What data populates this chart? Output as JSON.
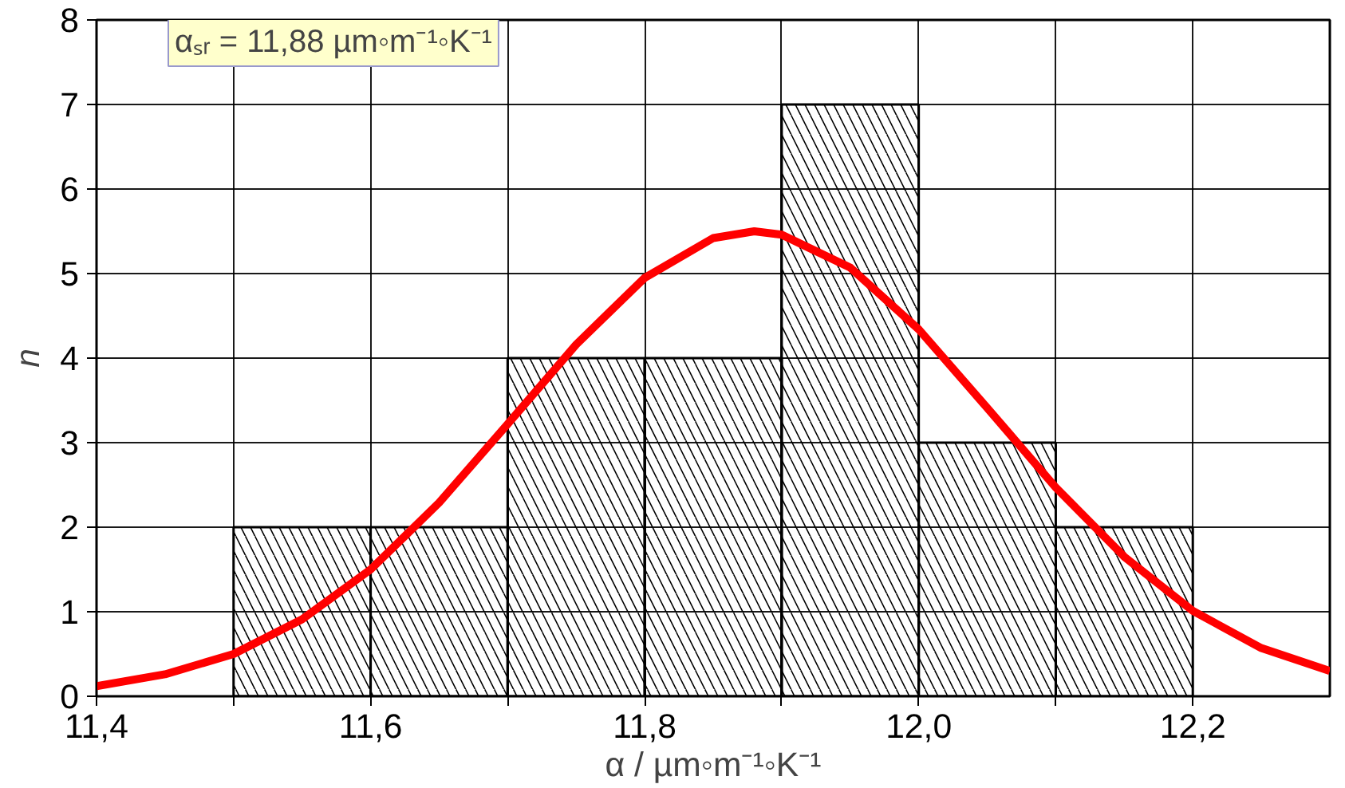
{
  "chart_data": {
    "type": "histogram",
    "xlabel": "α / µm◦m⁻¹◦K⁻¹",
    "ylabel": "n",
    "annotations": [
      "αₛᵣ = 11,88 µm◦m⁻¹◦K⁻¹"
    ],
    "xlim": [
      11.4,
      12.3
    ],
    "ylim": [
      0,
      8
    ],
    "xticks": [
      {
        "value": 11.4,
        "label": "11,4"
      },
      {
        "value": 11.5,
        "label": null
      },
      {
        "value": 11.6,
        "label": "11,6"
      },
      {
        "value": 11.7,
        "label": null
      },
      {
        "value": 11.8,
        "label": "11,8"
      },
      {
        "value": 11.9,
        "label": null
      },
      {
        "value": 12.0,
        "label": "12,0"
      },
      {
        "value": 12.1,
        "label": null
      },
      {
        "value": 12.2,
        "label": "12,2"
      }
    ],
    "yticks": [
      0,
      1,
      2,
      3,
      4,
      5,
      6,
      7,
      8
    ],
    "grid": true,
    "color": "#000000",
    "bins": [
      11.5,
      11.6,
      11.7,
      11.8,
      11.9,
      12.0,
      12.1,
      12.2
    ],
    "values": [
      2,
      2,
      4,
      4,
      7,
      3,
      2
    ],
    "series": [
      {
        "type": "line",
        "color": "#ff0000",
        "x": [
          11.4,
          11.45,
          11.5,
          11.55,
          11.6,
          11.65,
          11.7,
          11.75,
          11.8,
          11.85,
          11.88,
          11.9,
          11.95,
          12.0,
          12.05,
          12.1,
          12.15,
          12.2,
          12.25,
          12.3
        ],
        "values": [
          0.12,
          0.26,
          0.5,
          0.91,
          1.5,
          2.29,
          3.22,
          4.16,
          4.95,
          5.42,
          5.5,
          5.46,
          5.07,
          4.34,
          3.41,
          2.47,
          1.65,
          1.01,
          0.57,
          0.3
        ]
      }
    ]
  }
}
